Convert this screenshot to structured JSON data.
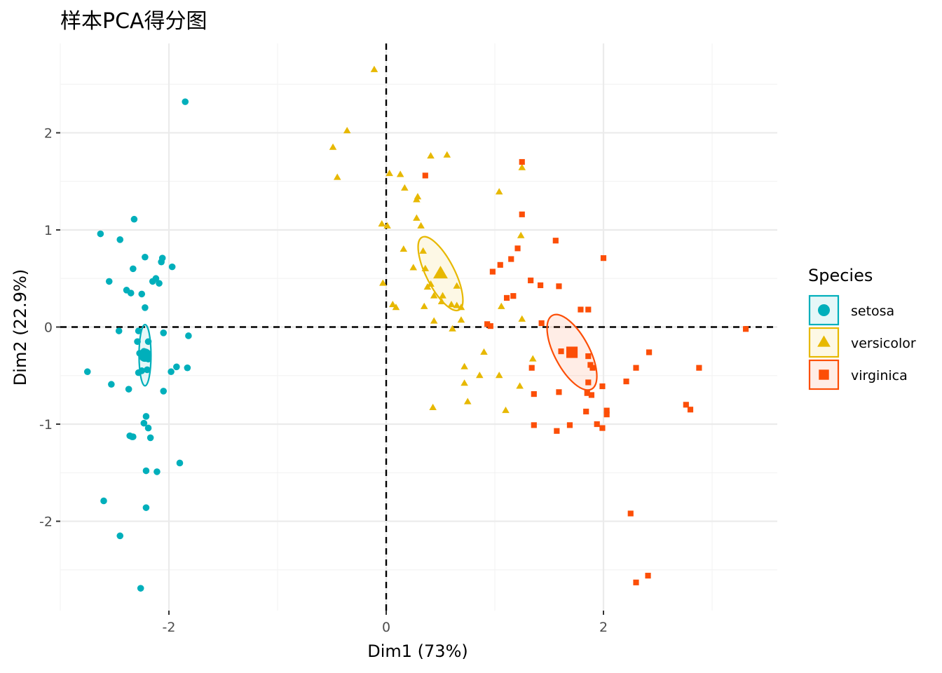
{
  "chart_data": {
    "type": "scatter",
    "title": "样本PCA得分图",
    "xlabel": "Dim1 (73%)",
    "ylabel": "Dim2 (22.9%)",
    "xlim": [
      -3.0,
      3.6
    ],
    "ylim": [
      -2.92,
      2.92
    ],
    "x_ticks": [
      -2,
      0,
      2
    ],
    "x_tick_labels": [
      "-2",
      "0",
      "2"
    ],
    "y_ticks": [
      -2,
      -1,
      0,
      1,
      2
    ],
    "y_tick_labels": [
      "-2",
      "-1",
      "0",
      "1",
      "2"
    ],
    "grid": true,
    "reference_lines": {
      "x": 0,
      "y": 0
    },
    "legend": {
      "title": "Species",
      "position": "right"
    },
    "series": [
      {
        "name": "setosa",
        "color": "#00AFBB",
        "marker": "circle",
        "centroid": [
          -2.22,
          -0.29
        ],
        "ellipse": {
          "rx": 0.055,
          "ry": 0.315,
          "angle_deg": 0
        },
        "points": [
          [
            -1.85,
            2.32
          ],
          [
            -2.32,
            1.11
          ],
          [
            -2.63,
            0.96
          ],
          [
            -2.45,
            0.9
          ],
          [
            -2.22,
            0.72
          ],
          [
            -2.06,
            0.71
          ],
          [
            -2.07,
            0.67
          ],
          [
            -1.97,
            0.62
          ],
          [
            -2.33,
            0.6
          ],
          [
            -2.12,
            0.5
          ],
          [
            -2.55,
            0.47
          ],
          [
            -2.15,
            0.47
          ],
          [
            -2.09,
            0.45
          ],
          [
            -2.39,
            0.38
          ],
          [
            -2.35,
            0.35
          ],
          [
            -2.25,
            0.34
          ],
          [
            -2.22,
            0.2
          ],
          [
            -2.46,
            -0.04
          ],
          [
            -2.28,
            -0.04
          ],
          [
            -2.05,
            -0.06
          ],
          [
            -1.82,
            -0.09
          ],
          [
            -2.29,
            -0.15
          ],
          [
            -2.19,
            -0.15
          ],
          [
            -2.23,
            -0.25
          ],
          [
            -2.27,
            -0.27
          ],
          [
            -2.19,
            -0.33
          ],
          [
            -2.25,
            -0.45
          ],
          [
            -2.2,
            -0.44
          ],
          [
            -1.83,
            -0.42
          ],
          [
            -1.93,
            -0.41
          ],
          [
            -1.98,
            -0.46
          ],
          [
            -2.28,
            -0.47
          ],
          [
            -2.75,
            -0.46
          ],
          [
            -2.53,
            -0.59
          ],
          [
            -2.37,
            -0.64
          ],
          [
            -2.05,
            -0.66
          ],
          [
            -2.21,
            -0.92
          ],
          [
            -2.23,
            -0.99
          ],
          [
            -2.19,
            -1.04
          ],
          [
            -2.36,
            -1.12
          ],
          [
            -2.33,
            -1.13
          ],
          [
            -2.34,
            -1.13
          ],
          [
            -2.17,
            -1.14
          ],
          [
            -1.9,
            -1.4
          ],
          [
            -2.21,
            -1.48
          ],
          [
            -2.11,
            -1.49
          ],
          [
            -2.6,
            -1.79
          ],
          [
            -2.21,
            -1.86
          ],
          [
            -2.45,
            -2.15
          ],
          [
            -2.26,
            -2.69
          ]
        ]
      },
      {
        "name": "versicolor",
        "color": "#E7B800",
        "marker": "triangle",
        "centroid": [
          0.5,
          0.55
        ],
        "ellipse": {
          "rx": 0.13,
          "ry": 0.42,
          "angle_deg": -27
        },
        "points": [
          [
            -0.11,
            2.65
          ],
          [
            -0.36,
            2.02
          ],
          [
            -0.49,
            1.85
          ],
          [
            -0.45,
            1.54
          ],
          [
            0.41,
            1.76
          ],
          [
            0.56,
            1.77
          ],
          [
            1.25,
            1.64
          ],
          [
            0.03,
            1.58
          ],
          [
            0.13,
            1.57
          ],
          [
            0.17,
            1.43
          ],
          [
            1.04,
            1.39
          ],
          [
            0.28,
            1.31
          ],
          [
            0.28,
            1.12
          ],
          [
            0.29,
            1.34
          ],
          [
            0.32,
            1.04
          ],
          [
            -0.04,
            1.06
          ],
          [
            0.01,
            1.04
          ],
          [
            0.16,
            0.8
          ],
          [
            0.34,
            0.78
          ],
          [
            1.24,
            0.94
          ],
          [
            0.38,
            0.41
          ],
          [
            0.25,
            0.61
          ],
          [
            0.36,
            0.6
          ],
          [
            0.41,
            0.44
          ],
          [
            0.65,
            0.42
          ],
          [
            -0.03,
            0.45
          ],
          [
            0.06,
            0.23
          ],
          [
            0.09,
            0.2
          ],
          [
            0.44,
            0.32
          ],
          [
            0.51,
            0.26
          ],
          [
            0.52,
            0.32
          ],
          [
            0.6,
            0.23
          ],
          [
            0.65,
            0.22
          ],
          [
            0.69,
            0.2
          ],
          [
            0.35,
            0.21
          ],
          [
            1.06,
            0.21
          ],
          [
            0.44,
            0.06
          ],
          [
            0.61,
            -0.02
          ],
          [
            0.69,
            0.07
          ],
          [
            1.25,
            0.08
          ],
          [
            0.9,
            -0.26
          ],
          [
            0.72,
            -0.41
          ],
          [
            0.86,
            -0.5
          ],
          [
            1.04,
            -0.5
          ],
          [
            0.72,
            -0.58
          ],
          [
            1.23,
            -0.61
          ],
          [
            1.35,
            -0.33
          ],
          [
            0.75,
            -0.77
          ],
          [
            0.43,
            -0.83
          ],
          [
            1.1,
            -0.86
          ]
        ]
      },
      {
        "name": "virginica",
        "color": "#FC4E07",
        "marker": "square",
        "centroid": [
          1.71,
          -0.26
        ],
        "ellipse": {
          "rx": 0.16,
          "ry": 0.43,
          "angle_deg": -28
        },
        "points": [
          [
            1.25,
            1.7
          ],
          [
            0.36,
            1.56
          ],
          [
            1.25,
            1.16
          ],
          [
            1.56,
            0.89
          ],
          [
            1.21,
            0.81
          ],
          [
            2.0,
            0.71
          ],
          [
            1.15,
            0.7
          ],
          [
            1.05,
            0.64
          ],
          [
            0.98,
            0.57
          ],
          [
            1.33,
            0.48
          ],
          [
            1.42,
            0.43
          ],
          [
            1.59,
            0.42
          ],
          [
            1.17,
            0.32
          ],
          [
            1.11,
            0.3
          ],
          [
            1.79,
            0.18
          ],
          [
            1.86,
            0.18
          ],
          [
            0.93,
            0.03
          ],
          [
            1.43,
            0.04
          ],
          [
            0.96,
            0.01
          ],
          [
            3.31,
            -0.02
          ],
          [
            2.42,
            -0.26
          ],
          [
            1.61,
            -0.25
          ],
          [
            1.69,
            -0.26
          ],
          [
            1.86,
            -0.3
          ],
          [
            1.88,
            -0.39
          ],
          [
            1.34,
            -0.42
          ],
          [
            2.3,
            -0.42
          ],
          [
            2.88,
            -0.42
          ],
          [
            1.9,
            -0.42
          ],
          [
            2.21,
            -0.56
          ],
          [
            1.86,
            -0.57
          ],
          [
            1.99,
            -0.61
          ],
          [
            1.36,
            -0.69
          ],
          [
            1.59,
            -0.67
          ],
          [
            1.85,
            -0.68
          ],
          [
            1.89,
            -0.7
          ],
          [
            2.76,
            -0.8
          ],
          [
            2.8,
            -0.85
          ],
          [
            2.03,
            -0.86
          ],
          [
            1.84,
            -0.87
          ],
          [
            2.03,
            -0.9
          ],
          [
            1.36,
            -1.01
          ],
          [
            1.69,
            -1.01
          ],
          [
            1.94,
            -1.0
          ],
          [
            1.99,
            -1.04
          ],
          [
            1.57,
            -1.07
          ],
          [
            2.25,
            -1.92
          ],
          [
            2.41,
            -2.56
          ],
          [
            2.3,
            -2.63
          ]
        ]
      }
    ]
  }
}
